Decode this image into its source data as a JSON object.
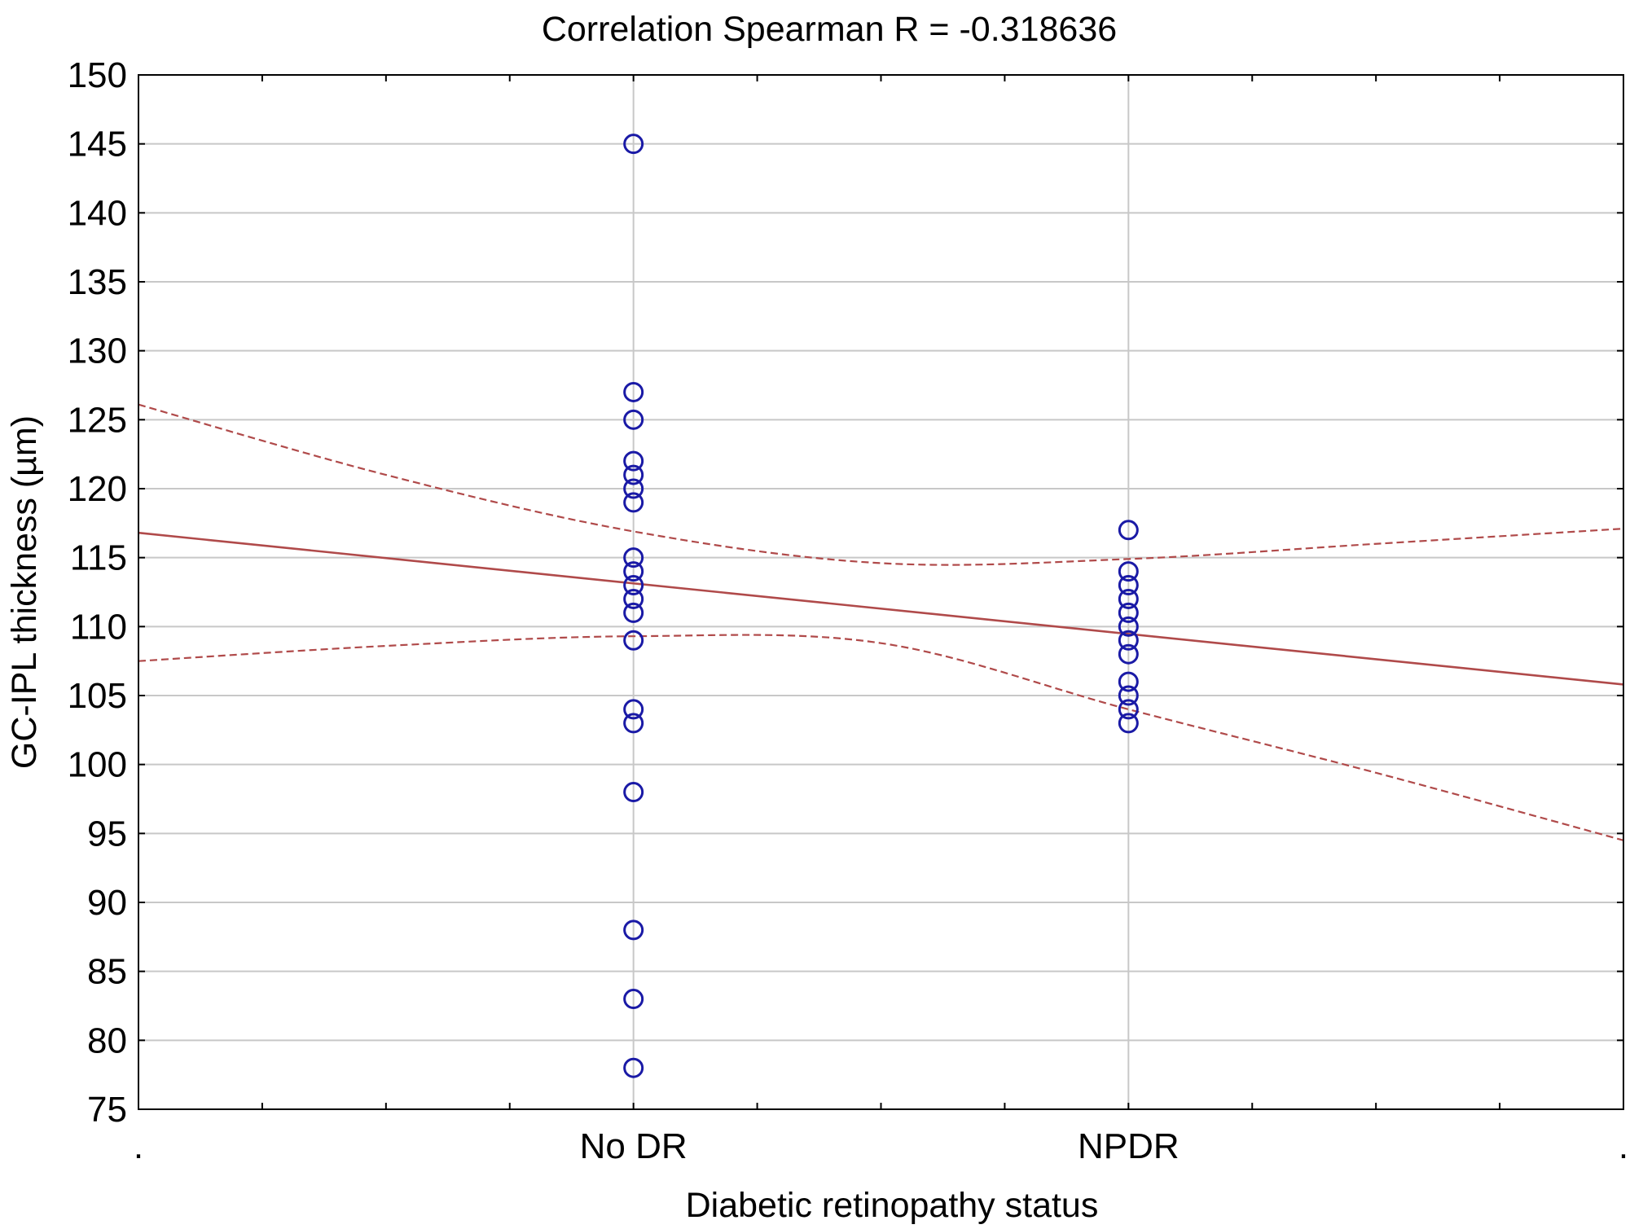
{
  "chart_data": {
    "type": "scatter",
    "title": "Correlation Spearman R = -0.318636",
    "xlabel": "Diabetic retinopathy status",
    "ylabel": "GC-IPL thickness (µm)",
    "categories": [
      "No DR",
      "NPDR"
    ],
    "x_range": [
      0,
      3
    ],
    "ylim": [
      75,
      150
    ],
    "yticks": [
      75,
      80,
      85,
      90,
      95,
      100,
      105,
      110,
      115,
      120,
      125,
      130,
      135,
      140,
      145,
      150
    ],
    "grid": true,
    "x_edge_labels": [
      ".",
      "."
    ],
    "series": [
      {
        "name": "No DR",
        "x": 1,
        "values": [
          145,
          127,
          125,
          122,
          121,
          120,
          119,
          115,
          114,
          113,
          112,
          111,
          109,
          104,
          103,
          98,
          88,
          83,
          78
        ]
      },
      {
        "name": "NPDR",
        "x": 2,
        "values": [
          117,
          114,
          113,
          112,
          111,
          110,
          109,
          108,
          106,
          105,
          104,
          103
        ]
      }
    ],
    "regression": {
      "x": [
        0,
        3
      ],
      "y": [
        116.8,
        105.8
      ]
    },
    "confidence_upper": {
      "x": [
        0,
        0.5,
        1,
        1.5,
        2,
        2.5,
        3
      ],
      "y": [
        126.1,
        121.0,
        116.9,
        114.6,
        114.9,
        116.0,
        117.1
      ]
    },
    "confidence_lower": {
      "x": [
        0,
        0.5,
        1,
        1.5,
        2,
        2.5,
        3
      ],
      "y": [
        107.5,
        108.6,
        109.3,
        108.8,
        104.0,
        99.4,
        94.5
      ]
    },
    "colors": {
      "points": "#1a1aa6",
      "regression": "#b04a4a",
      "confidence": "#b04a4a",
      "grid": "#c8c8c8",
      "axis": "#000000"
    }
  }
}
